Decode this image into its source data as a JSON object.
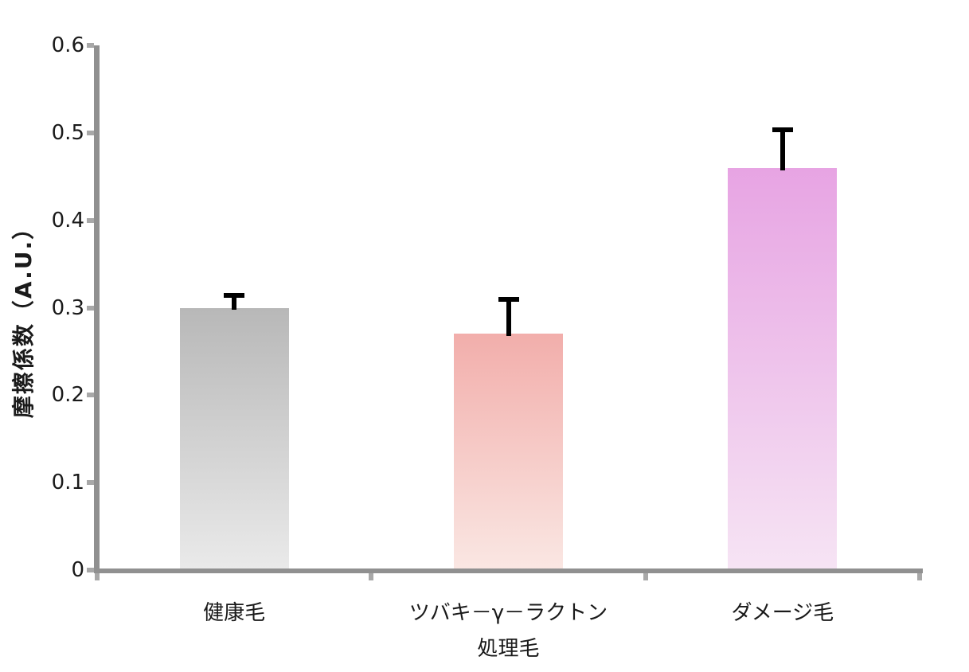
{
  "chart_data": {
    "type": "bar",
    "title": "",
    "xlabel": "",
    "ylabel": "摩擦係数（A.U.）",
    "ylim": [
      0,
      0.6
    ],
    "ytick_values": [
      0,
      0.1,
      0.2,
      0.3,
      0.4,
      0.5,
      0.6
    ],
    "ytick_labels": [
      "0",
      "0.1",
      "0.2",
      "0.3",
      "0.4",
      "0.5",
      "0.6"
    ],
    "grid": false,
    "legend": "none",
    "categories": [
      "健康毛",
      "ツバキ－γ－ラクトン\n処理毛",
      "ダメージ毛"
    ],
    "values": [
      0.3,
      0.27,
      0.46
    ],
    "errors": [
      0.017,
      0.042,
      0.046
    ],
    "bar_gradients": [
      {
        "top": "#b8b8b8",
        "bottom": "#eaeaea"
      },
      {
        "top": "#f2aeab",
        "bottom": "#fae7e3"
      },
      {
        "top": "#e7a4e3",
        "bottom": "#f6e4f4"
      }
    ],
    "colors": {
      "axis": "#909090",
      "tick": "#a8a8a8",
      "text": "#1a1a1a",
      "error_bar": "#000000",
      "background": "#ffffff"
    }
  }
}
